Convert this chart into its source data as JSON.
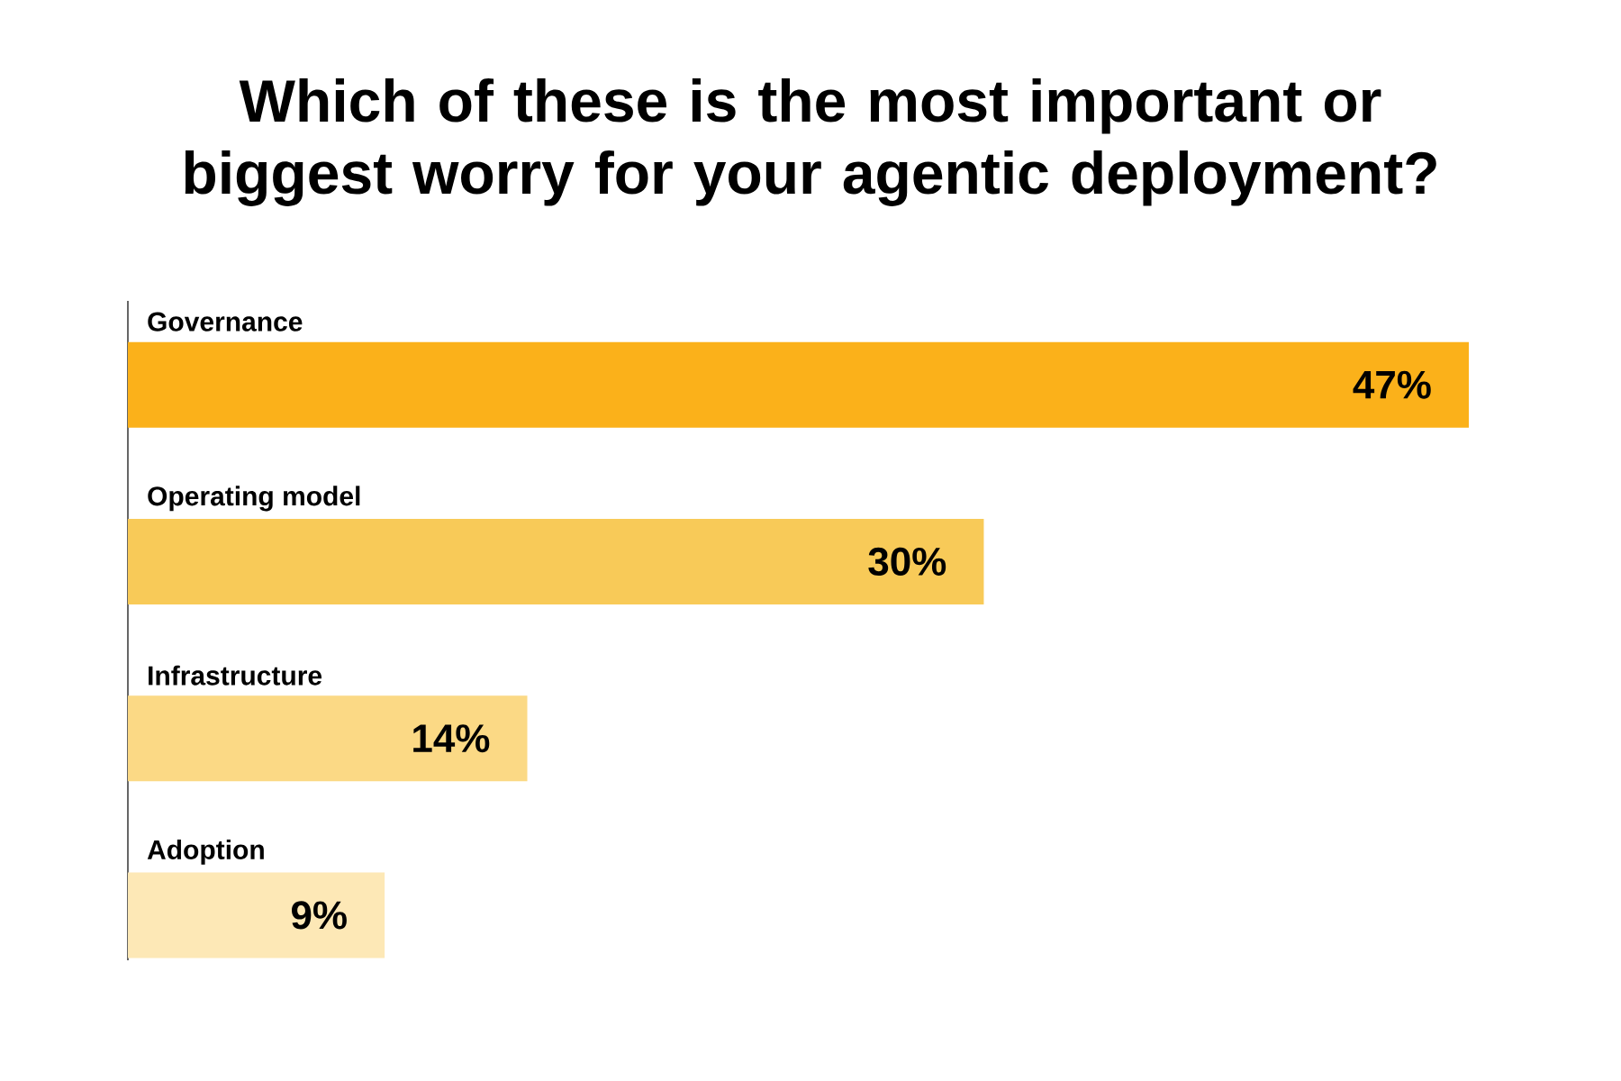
{
  "chart_data": {
    "type": "bar",
    "orientation": "horizontal",
    "title": "Which of these is the most important or biggest worry for your agentic deployment?",
    "categories": [
      "Governance",
      "Operating model",
      "Infrastructure",
      "Adoption"
    ],
    "values": [
      47,
      30,
      14,
      9
    ],
    "value_labels": [
      "47%",
      "30%",
      "14%",
      "9%"
    ],
    "colors": [
      "#fbb11a",
      "#f8ca58",
      "#fbd985",
      "#fde8b6"
    ]
  }
}
